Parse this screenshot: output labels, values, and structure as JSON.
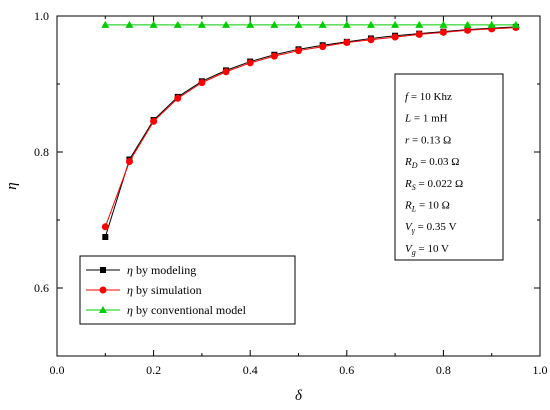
{
  "chart_data": {
    "type": "line",
    "title": "",
    "xlabel": "δ",
    "ylabel": "η",
    "xlim": [
      0.0,
      1.0
    ],
    "ylim": [
      0.5,
      1.0
    ],
    "xticks": [
      "0.0",
      "0.2",
      "0.4",
      "0.6",
      "0.8",
      "1.0"
    ],
    "yticks": [
      "0.6",
      "0.8",
      "1.0"
    ],
    "grid": false,
    "legend_position": "bottom-left",
    "params": [
      {
        "sym": "f",
        "sub": "",
        "value": " = 10 Khz"
      },
      {
        "sym": "L",
        "sub": "",
        "value": " = 1 mH"
      },
      {
        "sym": "r",
        "sub": "",
        "value": " = 0.13 Ω"
      },
      {
        "sym": "R",
        "sub": "D",
        "value": " = 0.03 Ω"
      },
      {
        "sym": "R",
        "sub": "S",
        "value": " = 0.022 Ω"
      },
      {
        "sym": "R",
        "sub": "L",
        "value": " = 10 Ω"
      },
      {
        "sym": "V",
        "sub": "γ",
        "value": " = 0.35 V"
      },
      {
        "sym": "V",
        "sub": "g",
        "value": " = 10 V"
      }
    ],
    "series": [
      {
        "name": "by modeling",
        "legend_symbol": "η",
        "color": "#000000",
        "marker": "square",
        "x": [
          0.1,
          0.15,
          0.2,
          0.25,
          0.3,
          0.35,
          0.4,
          0.45,
          0.5,
          0.55,
          0.6,
          0.65,
          0.7,
          0.75,
          0.8,
          0.85,
          0.9,
          0.95
        ],
        "y": [
          0.675,
          0.789,
          0.847,
          0.881,
          0.904,
          0.92,
          0.933,
          0.943,
          0.951,
          0.957,
          0.962,
          0.967,
          0.971,
          0.974,
          0.977,
          0.98,
          0.982,
          0.984
        ]
      },
      {
        "name": "by simulation",
        "legend_symbol": "η",
        "color": "#ff0000",
        "marker": "circle",
        "x": [
          0.1,
          0.15,
          0.2,
          0.25,
          0.3,
          0.35,
          0.4,
          0.45,
          0.5,
          0.55,
          0.6,
          0.65,
          0.7,
          0.75,
          0.8,
          0.85,
          0.9,
          0.95
        ],
        "y": [
          0.69,
          0.786,
          0.845,
          0.879,
          0.902,
          0.918,
          0.931,
          0.941,
          0.949,
          0.955,
          0.961,
          0.965,
          0.969,
          0.973,
          0.976,
          0.979,
          0.981,
          0.983
        ]
      },
      {
        "name": "by conventional model",
        "legend_symbol": "η",
        "color": "#00cc00",
        "marker": "triangle",
        "x": [
          0.1,
          0.15,
          0.2,
          0.25,
          0.3,
          0.35,
          0.4,
          0.45,
          0.5,
          0.55,
          0.6,
          0.65,
          0.7,
          0.75,
          0.8,
          0.85,
          0.9,
          0.95
        ],
        "y": [
          0.987,
          0.987,
          0.987,
          0.987,
          0.987,
          0.987,
          0.987,
          0.987,
          0.987,
          0.987,
          0.987,
          0.987,
          0.987,
          0.987,
          0.987,
          0.987,
          0.987,
          0.987
        ]
      }
    ]
  }
}
